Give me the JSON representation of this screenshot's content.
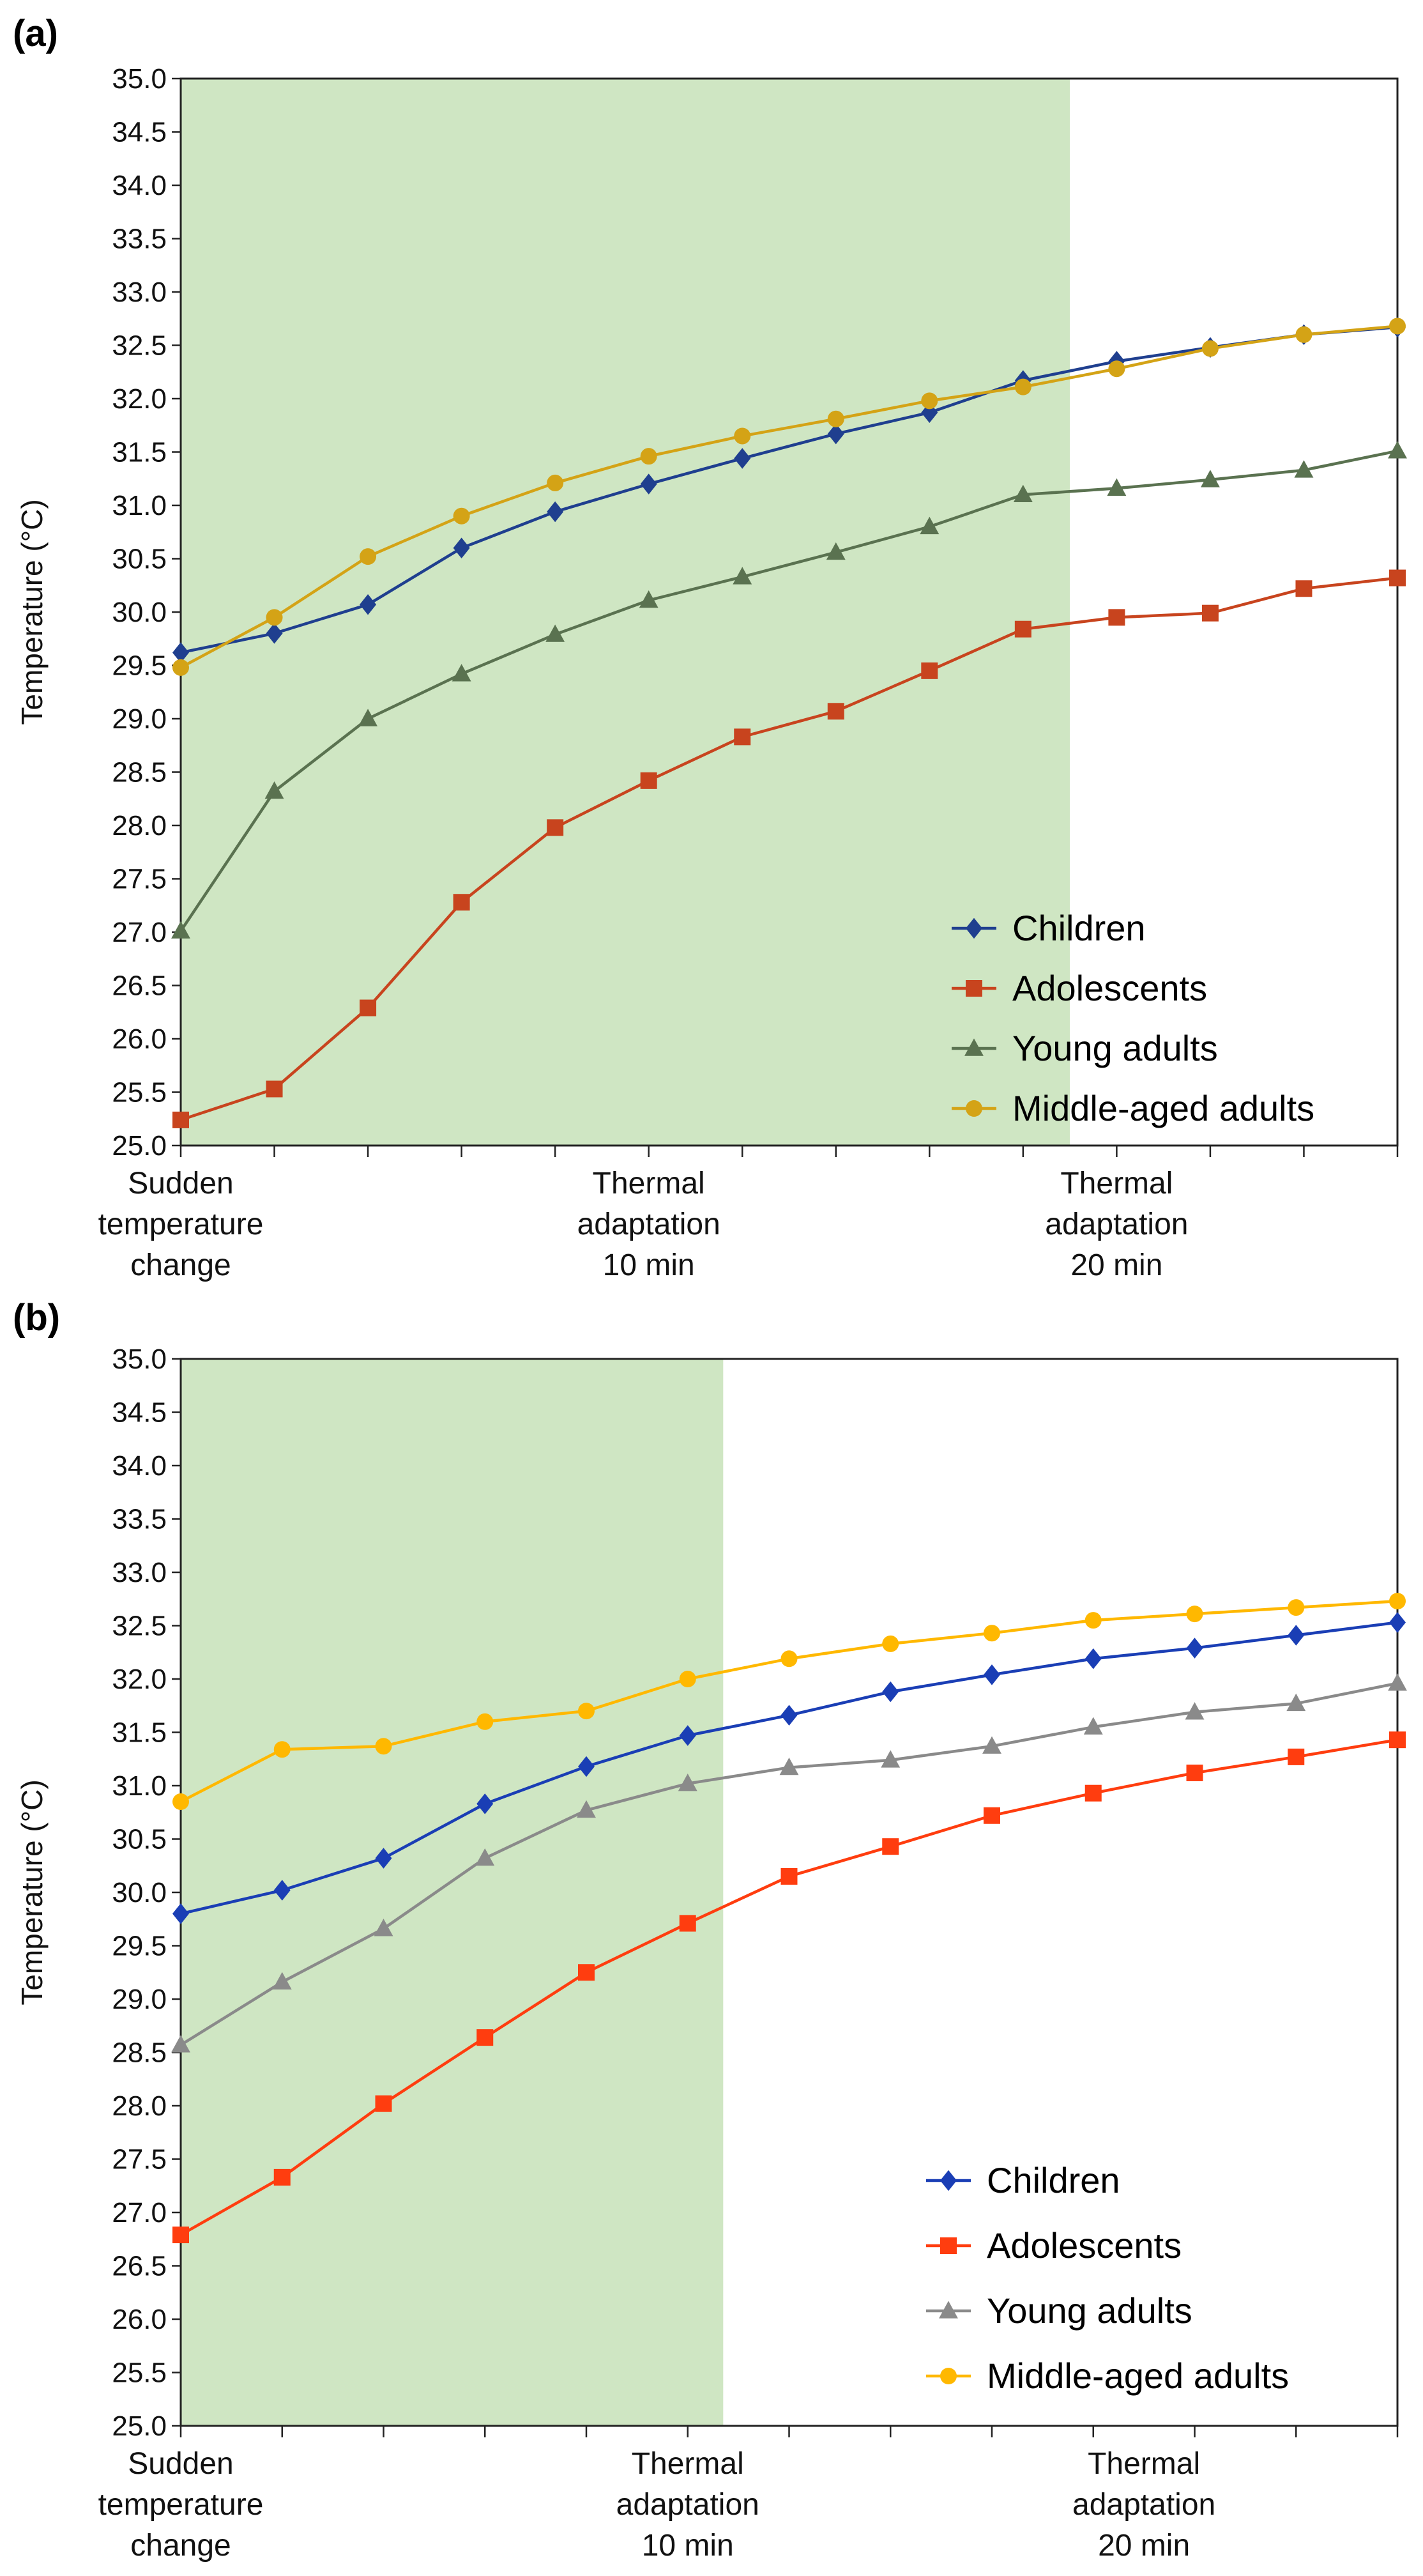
{
  "chart_data": [
    {
      "panel_label": "(a)",
      "type": "line",
      "ylabel": "Temperature (°C)",
      "ylim": [
        25.0,
        35.0
      ],
      "yticks": [
        "25.0",
        "25.5",
        "26.0",
        "26.5",
        "27.0",
        "27.5",
        "28.0",
        "28.5",
        "29.0",
        "29.5",
        "30.0",
        "30.5",
        "31.0",
        "31.5",
        "32.0",
        "32.5",
        "33.0",
        "33.5",
        "34.0",
        "34.5",
        "35.0"
      ],
      "x": [
        0,
        1,
        2,
        3,
        4,
        5,
        6,
        7,
        8,
        9,
        10,
        11,
        12,
        13
      ],
      "x_tick_labels": [
        {
          "at": 0,
          "lines": [
            "Sudden",
            "temperature",
            "change"
          ]
        },
        {
          "at": 5,
          "lines": [
            "Thermal",
            "adaptation",
            "10 min"
          ]
        },
        {
          "at": 10,
          "lines": [
            "Thermal",
            "adaptation",
            "20 min"
          ]
        }
      ],
      "shaded_region": [
        0,
        9.5
      ],
      "shade_color": "#cfe6c3",
      "legend_position": "bottom-right",
      "series": [
        {
          "name": "Children",
          "color": "#1f3f8f",
          "marker": "diamond",
          "values": [
            29.62,
            29.8,
            30.07,
            30.6,
            30.94,
            31.2,
            31.44,
            31.67,
            31.87,
            32.17,
            32.35,
            32.48,
            32.6,
            32.67
          ]
        },
        {
          "name": "Adolescents",
          "color": "#c8441e",
          "marker": "square",
          "values": [
            25.24,
            25.53,
            26.29,
            27.28,
            27.98,
            28.42,
            28.83,
            29.07,
            29.45,
            29.84,
            29.95,
            29.99,
            30.22,
            30.32
          ]
        },
        {
          "name": "Young adults",
          "color": "#5a7250",
          "marker": "triangle",
          "values": [
            27.01,
            28.32,
            29.0,
            29.42,
            29.79,
            30.11,
            30.33,
            30.56,
            30.8,
            31.1,
            31.16,
            31.24,
            31.33,
            31.51
          ]
        },
        {
          "name": "Middle-aged adults",
          "color": "#d4a316",
          "marker": "circle",
          "values": [
            29.48,
            29.95,
            30.52,
            30.9,
            31.21,
            31.46,
            31.65,
            31.81,
            31.98,
            32.11,
            32.28,
            32.47,
            32.6,
            32.68
          ]
        }
      ]
    },
    {
      "panel_label": "(b)",
      "type": "line",
      "ylabel": "Temperature (°C)",
      "ylim": [
        25.0,
        35.0
      ],
      "yticks": [
        "25.0",
        "25.5",
        "26.0",
        "26.5",
        "27.0",
        "27.5",
        "28.0",
        "28.5",
        "29.0",
        "29.5",
        "30.0",
        "30.5",
        "31.0",
        "31.5",
        "32.0",
        "32.5",
        "33.0",
        "33.5",
        "34.0",
        "34.5",
        "35.0"
      ],
      "x": [
        0,
        1,
        2,
        3,
        4,
        5,
        6,
        7,
        8,
        9,
        10,
        11,
        12
      ],
      "x_tick_labels": [
        {
          "at": 0,
          "lines": [
            "Sudden",
            "temperature",
            "change"
          ]
        },
        {
          "at": 5,
          "lines": [
            "Thermal",
            "adaptation",
            "10 min"
          ]
        },
        {
          "at": 9.5,
          "lines": [
            "Thermal",
            "adaptation",
            "20 min"
          ]
        }
      ],
      "shaded_region": [
        0,
        5.35
      ],
      "shade_color": "#cfe6c3",
      "legend_position": "bottom-right",
      "series": [
        {
          "name": "Children",
          "color": "#1a3eb5",
          "marker": "diamond",
          "values": [
            29.8,
            30.02,
            30.32,
            30.83,
            31.18,
            31.47,
            31.66,
            31.88,
            32.04,
            32.19,
            32.29,
            32.41,
            32.53
          ]
        },
        {
          "name": "Adolescents",
          "color": "#ff3d0f",
          "marker": "square",
          "values": [
            26.79,
            27.33,
            28.02,
            28.64,
            29.25,
            29.71,
            30.15,
            30.43,
            30.72,
            30.93,
            31.12,
            31.27,
            31.43
          ]
        },
        {
          "name": "Young adults",
          "color": "#8a8a8a",
          "marker": "triangle",
          "values": [
            28.57,
            29.16,
            29.66,
            30.32,
            30.77,
            31.02,
            31.17,
            31.24,
            31.37,
            31.55,
            31.69,
            31.77,
            31.96
          ]
        },
        {
          "name": "Middle-aged adults",
          "color": "#ffb800",
          "marker": "circle",
          "values": [
            30.85,
            31.34,
            31.37,
            31.6,
            31.7,
            32.0,
            32.19,
            32.33,
            32.43,
            32.55,
            32.61,
            32.67,
            32.73
          ]
        }
      ]
    }
  ]
}
